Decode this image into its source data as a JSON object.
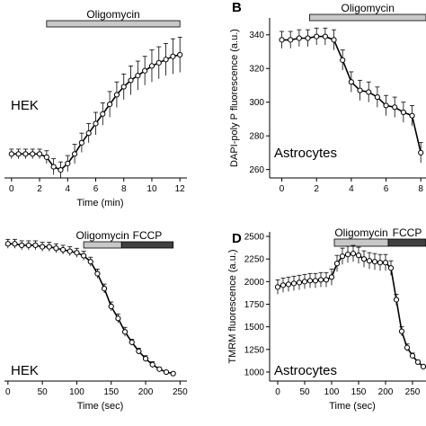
{
  "chart_data": [
    {
      "type": "line",
      "letter": "",
      "cell_label": "HEK",
      "xlabel": "Time (min)",
      "ylabel": "",
      "xlim": [
        -0.5,
        12.5
      ],
      "ylim": [
        0,
        100
      ],
      "xticks": [
        0,
        2,
        4,
        6,
        8,
        10,
        12
      ],
      "xtick_labels": [
        "0",
        "2",
        "4",
        "6",
        "8",
        "10",
        "12"
      ],
      "yticks": [],
      "ytick_labels": [],
      "bars": [
        {
          "label": "Oligomycin",
          "x_start": 2.5,
          "x_end": 12.0,
          "fill": "#c8c8c8"
        }
      ],
      "series": [
        {
          "x": [
            0,
            0.5,
            1,
            1.5,
            2,
            2.5,
            3,
            3.5,
            4,
            4.5,
            5,
            5.5,
            6,
            6.5,
            7,
            7.5,
            8,
            8.5,
            9,
            9.5,
            10,
            10.5,
            11,
            11.5,
            12
          ],
          "y": [
            15,
            15,
            15,
            15,
            15,
            13,
            7,
            5,
            9,
            15,
            22,
            28,
            34,
            40,
            46,
            52,
            57,
            61,
            64,
            67,
            70,
            72,
            74,
            76,
            77
          ],
          "err": [
            3,
            3,
            3,
            3,
            3,
            4,
            5,
            5,
            5,
            6,
            6,
            6,
            7,
            7,
            8,
            8,
            8,
            9,
            9,
            9,
            10,
            10,
            10,
            11,
            11
          ]
        }
      ]
    },
    {
      "type": "line",
      "letter": "B",
      "cell_label": "Astrocytes",
      "xlabel": "",
      "ylabel": "DAPI-poly P fluorescence (a.u.)",
      "xlim": [
        -0.7,
        8.3
      ],
      "ylim": [
        255,
        350
      ],
      "xticks": [
        0,
        2,
        4,
        6,
        8
      ],
      "xtick_labels": [
        "0",
        "2",
        "4",
        "6",
        "8"
      ],
      "yticks": [
        260,
        280,
        300,
        320,
        340
      ],
      "ytick_labels": [
        "260",
        "280",
        "300",
        "320",
        "340"
      ],
      "bars": [
        {
          "label": "Oligomycin",
          "x_start": 1.6,
          "x_end": 8.3,
          "fill": "#c8c8c8"
        }
      ],
      "series": [
        {
          "x": [
            0,
            0.5,
            1,
            1.5,
            2,
            2.5,
            3,
            3.5,
            4,
            4.5,
            5,
            5.5,
            6,
            6.5,
            7,
            7.5,
            8
          ],
          "y": [
            337,
            337,
            338,
            338,
            339,
            339,
            337,
            325,
            312,
            307,
            306,
            303,
            298,
            297,
            294,
            292,
            270
          ],
          "err": [
            5,
            5,
            5,
            5,
            5,
            5,
            6,
            6,
            6,
            6,
            6,
            6,
            6,
            6,
            6,
            6,
            6
          ]
        }
      ]
    },
    {
      "type": "line",
      "letter": "",
      "cell_label": "HEK",
      "xlabel": "Time (sec)",
      "ylabel": "",
      "xlim": [
        -5,
        260
      ],
      "ylim": [
        0,
        100
      ],
      "xticks": [
        0,
        50,
        100,
        150,
        200,
        250
      ],
      "xtick_labels": [
        "0",
        "50",
        "100",
        "150",
        "200",
        "250"
      ],
      "yticks": [],
      "ytick_labels": [],
      "bars": [
        {
          "label": "Oligomycin",
          "x_start": 110,
          "x_end": 165,
          "fill": "#c8c8c8"
        },
        {
          "label": "FCCP",
          "x_start": 165,
          "x_end": 240,
          "fill": "#404040"
        }
      ],
      "series": [
        {
          "x": [
            0,
            10,
            20,
            30,
            40,
            50,
            60,
            70,
            80,
            90,
            100,
            110,
            120,
            130,
            140,
            150,
            160,
            170,
            180,
            190,
            200,
            210,
            220,
            230,
            240
          ],
          "y": [
            92,
            92,
            91,
            91,
            91,
            90,
            90,
            89,
            88,
            87,
            86,
            84,
            80,
            72,
            62,
            50,
            42,
            33,
            26,
            20,
            15,
            11,
            8,
            6,
            5
          ],
          "err": [
            3,
            3,
            3,
            3,
            3,
            3,
            3,
            3,
            3,
            3,
            3,
            3,
            3,
            3,
            3,
            3,
            3,
            3,
            2,
            2,
            2,
            2,
            1,
            1,
            1
          ]
        }
      ]
    },
    {
      "type": "line",
      "letter": "D",
      "cell_label": "Astrocytes",
      "xlabel": "Time (sec)",
      "ylabel": "TMRM fluorescence (a.u.)",
      "xlim": [
        -15,
        275
      ],
      "ylim": [
        900,
        2550
      ],
      "xticks": [
        0,
        50,
        100,
        150,
        200,
        250
      ],
      "xtick_labels": [
        "0",
        "50",
        "100",
        "150",
        "200",
        "250"
      ],
      "yticks": [
        1000,
        1250,
        1500,
        1750,
        2000,
        2250,
        2500
      ],
      "ytick_labels": [
        "1000",
        "1250",
        "1500",
        "1750",
        "2000",
        "2250",
        "2500"
      ],
      "bars": [
        {
          "label": "Oligomycin",
          "x_start": 105,
          "x_end": 205,
          "fill": "#c8c8c8"
        },
        {
          "label": "FCCP",
          "x_start": 205,
          "x_end": 275,
          "fill": "#404040"
        }
      ],
      "series": [
        {
          "x": [
            0,
            10,
            20,
            30,
            40,
            50,
            60,
            70,
            80,
            90,
            100,
            110,
            120,
            130,
            140,
            150,
            160,
            170,
            180,
            190,
            200,
            210,
            220,
            230,
            240,
            250,
            260,
            270
          ],
          "y": [
            1940,
            1960,
            1970,
            1980,
            1990,
            2000,
            2010,
            2010,
            2020,
            2020,
            2050,
            2200,
            2280,
            2300,
            2310,
            2290,
            2250,
            2230,
            2220,
            2210,
            2210,
            2150,
            1800,
            1450,
            1270,
            1180,
            1110,
            1060
          ],
          "err": [
            80,
            80,
            80,
            80,
            80,
            80,
            80,
            80,
            80,
            80,
            90,
            90,
            90,
            90,
            90,
            90,
            90,
            90,
            90,
            90,
            90,
            80,
            60,
            50,
            40,
            30,
            20,
            20
          ]
        }
      ]
    }
  ]
}
